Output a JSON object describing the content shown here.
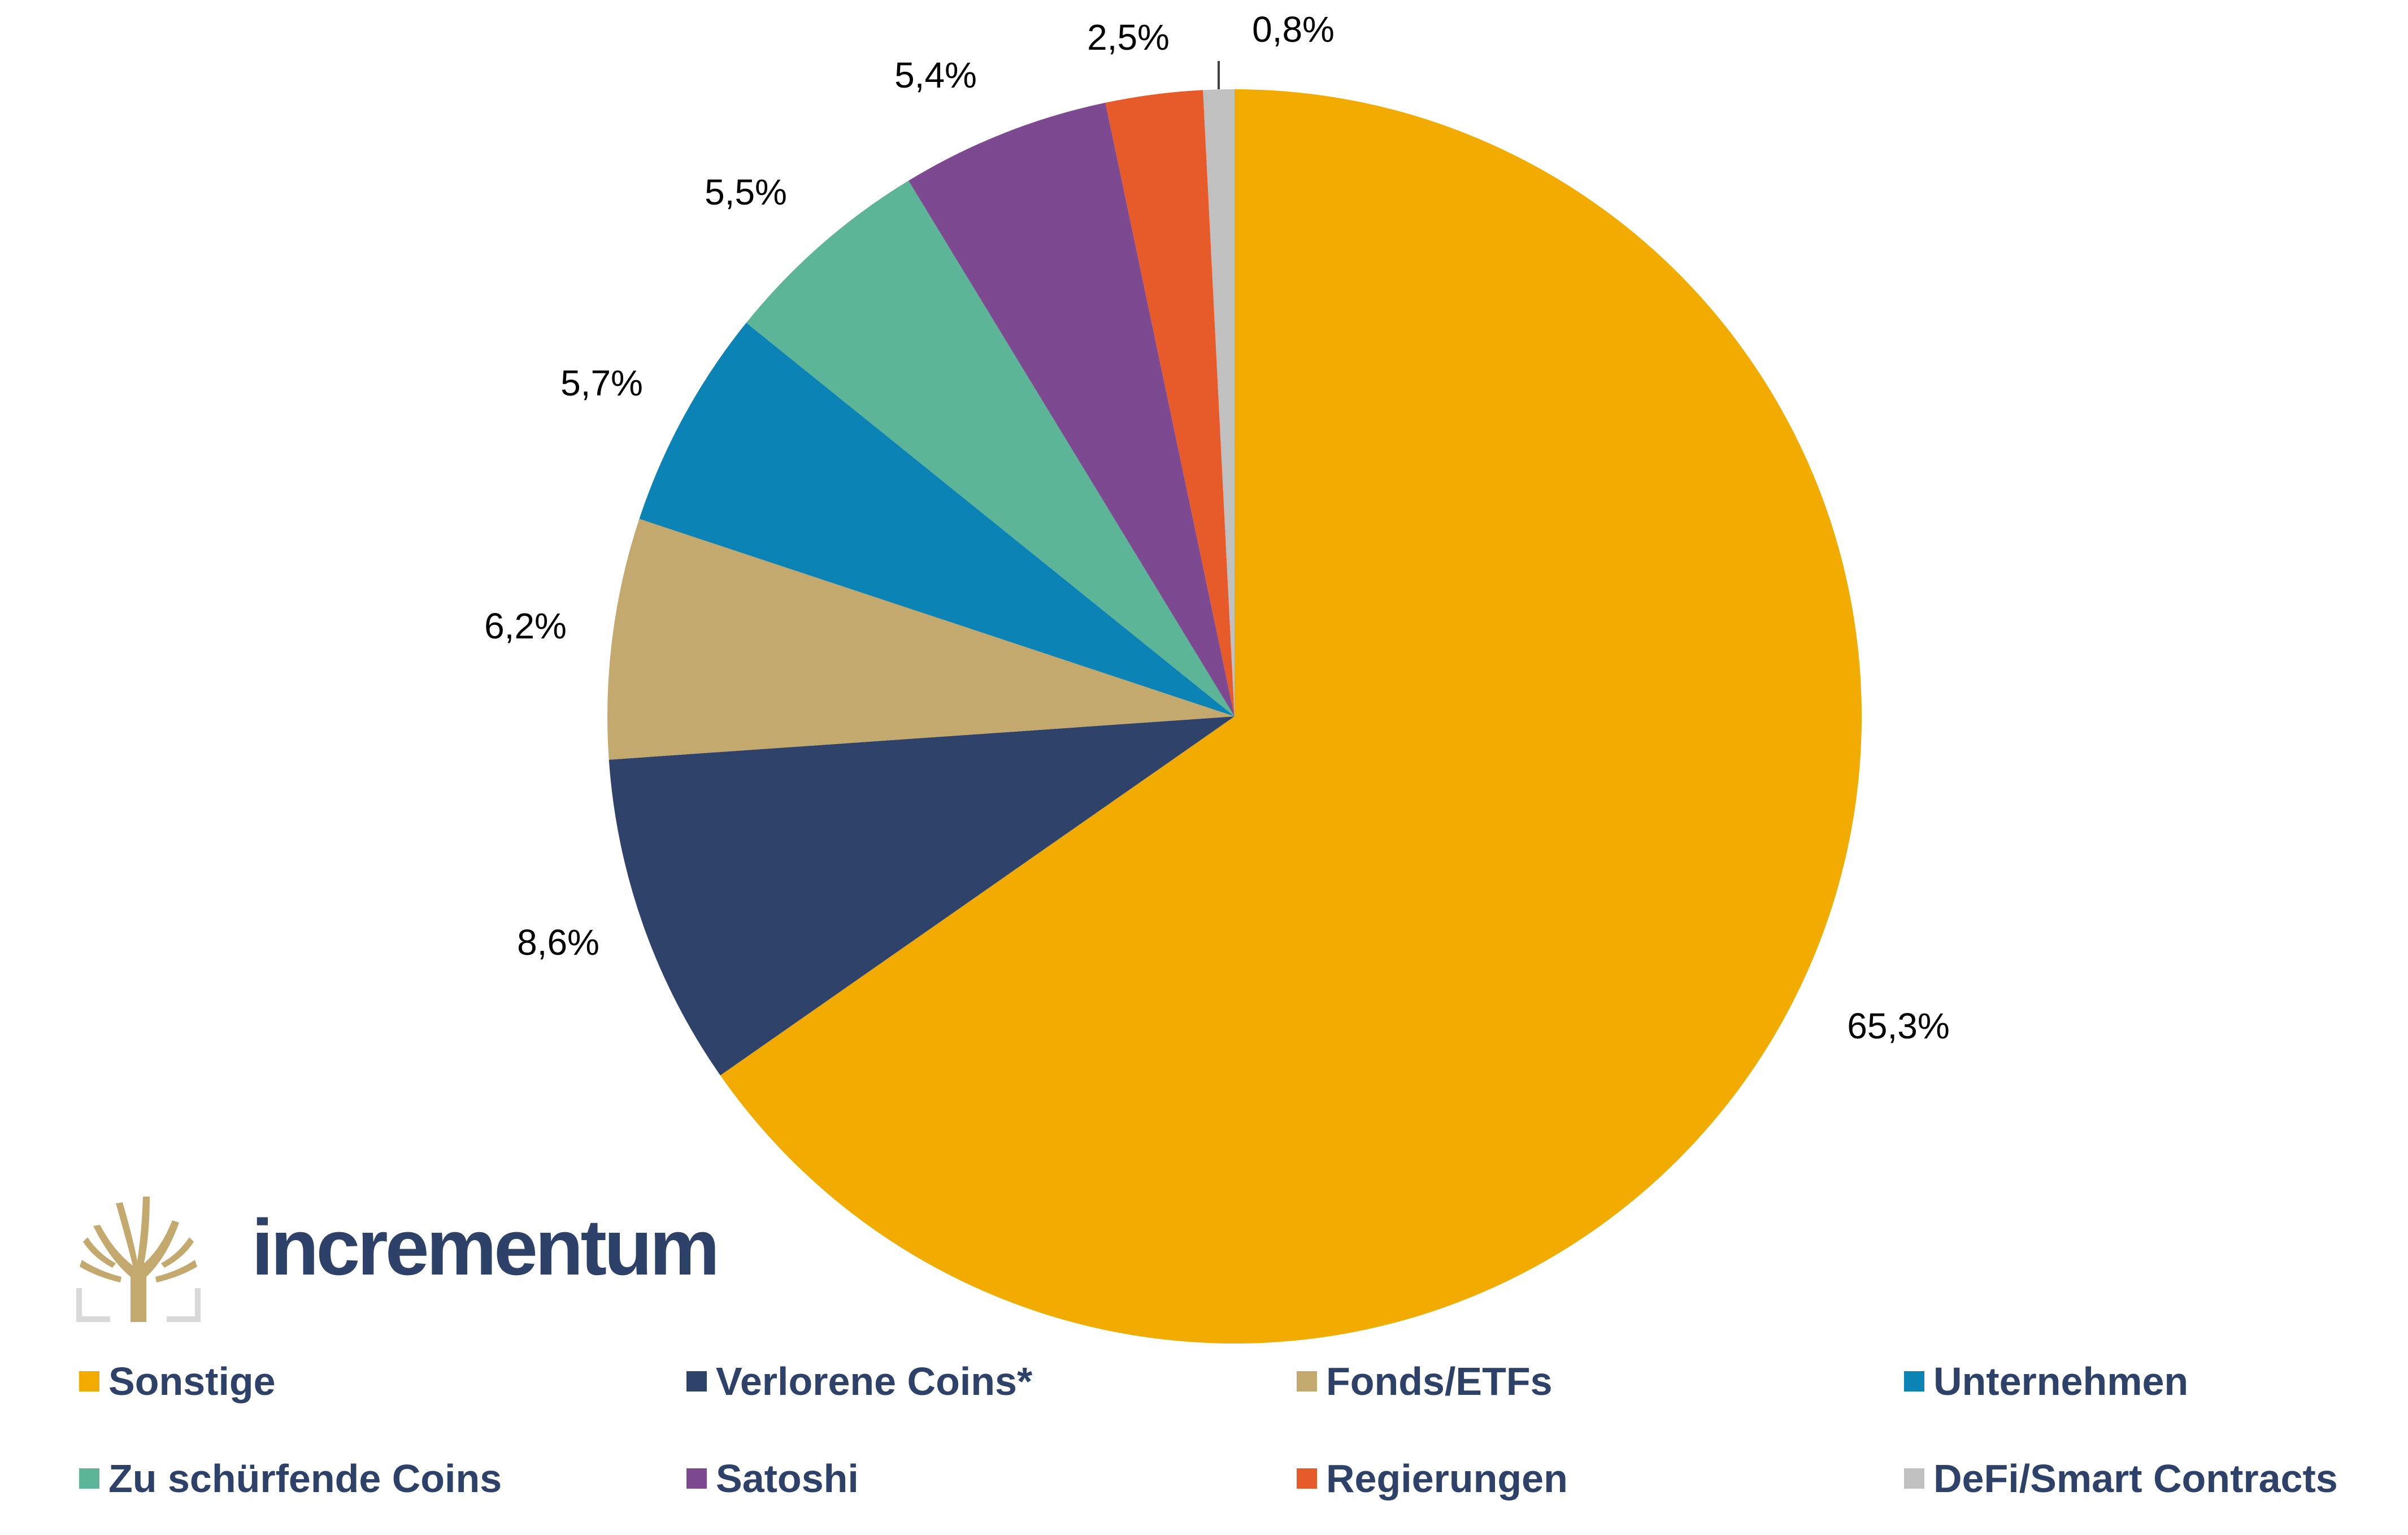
{
  "chart_data": {
    "type": "pie",
    "title": "",
    "slices": [
      {
        "label": "Sonstige",
        "value": 65.3,
        "display": "65,3%",
        "color": "#F2AB00"
      },
      {
        "label": "Verlorene Coins*",
        "value": 8.6,
        "display": "8,6%",
        "color": "#2E426A"
      },
      {
        "label": "Fonds/ETFs",
        "value": 6.2,
        "display": "6,2%",
        "color": "#C3A96D"
      },
      {
        "label": "Unternehmen",
        "value": 5.7,
        "display": "5,7%",
        "color": "#0B83B5"
      },
      {
        "label": "Zu schürfende Coins",
        "value": 5.5,
        "display": "5,5%",
        "color": "#5BB596"
      },
      {
        "label": "Satoshi",
        "value": 5.4,
        "display": "5,4%",
        "color": "#7D4A91"
      },
      {
        "label": "Regierungen",
        "value": 2.5,
        "display": "2,5%",
        "color": "#E75B2A"
      },
      {
        "label": "DeFi/Smart Contracts",
        "value": 0.8,
        "display": "0,8%",
        "color": "#C0C0C0"
      }
    ],
    "start": "12 o'clock",
    "direction": "clockwise",
    "legend": "bottom"
  },
  "brand": {
    "name": "incrementum",
    "icon": "tree-logo-icon",
    "color": "#2E4169",
    "gold": "#C3A96D"
  }
}
